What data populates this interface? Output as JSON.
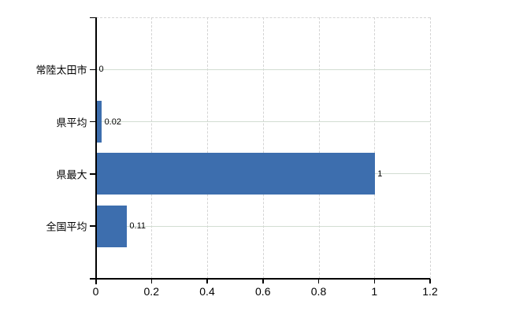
{
  "chart_data": {
    "type": "bar",
    "orientation": "horizontal",
    "title": "",
    "xlabel": "",
    "ylabel": "",
    "categories": [
      "常陸太田市",
      "県平均",
      "県最大",
      "全国平均"
    ],
    "values": [
      0,
      0.02,
      1,
      0.11
    ],
    "value_labels": [
      "0",
      "0.02",
      "1",
      "0.11"
    ],
    "xlim": [
      0,
      1.2
    ],
    "x_ticks": [
      0,
      0.2,
      0.4,
      0.6,
      0.8,
      1,
      1.2
    ],
    "x_tick_labels": [
      "0",
      "0.2",
      "0.4",
      "0.6",
      "0.8",
      "1",
      "1.2"
    ],
    "grid": true,
    "legend": "none",
    "colors": {
      "bar": "#3d6eae",
      "axis": "#000000",
      "h_gridline": "#d2ddd2",
      "v_gridline": "#d4d4d4",
      "plot_border_dashed": "#d4d4d4",
      "background": "#ffffff",
      "text": "#000000"
    }
  }
}
